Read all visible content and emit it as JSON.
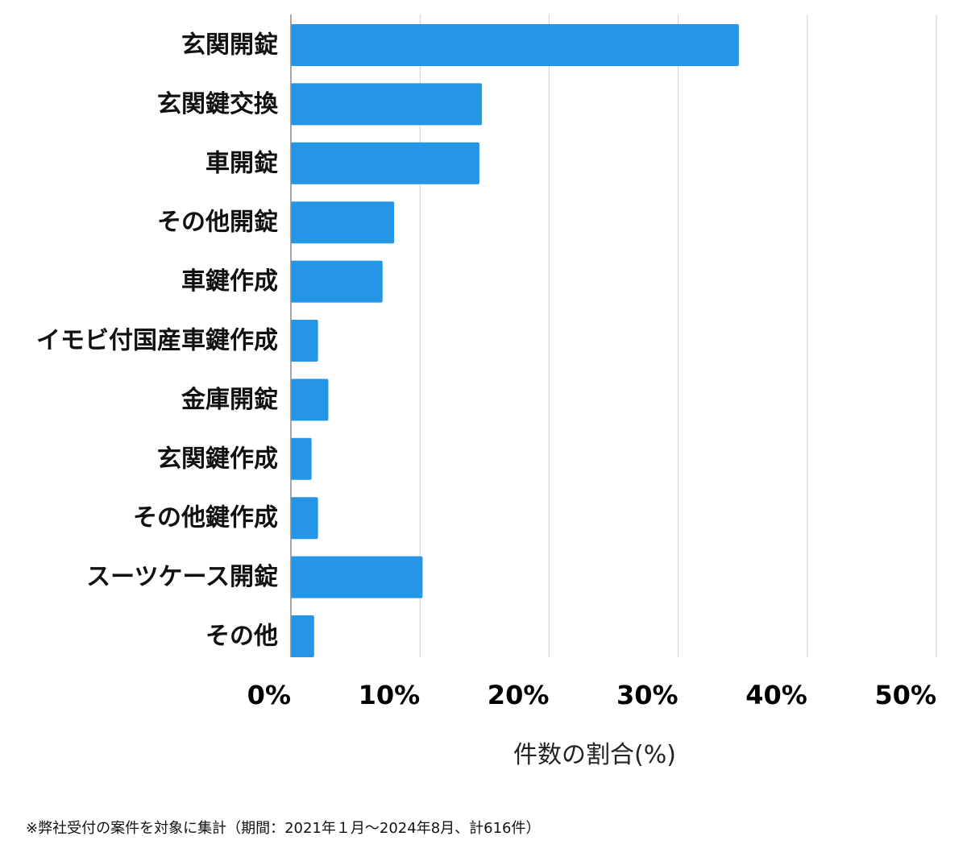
{
  "chart_data": {
    "type": "bar",
    "orientation": "horizontal",
    "categories": [
      "玄関開錠",
      "玄関鍵交換",
      "車開錠",
      "その他開錠",
      "車鍵作成",
      "イモビ付国産車鍵作成",
      "金庫開錠",
      "玄関鍵作成",
      "その他鍵作成",
      "スーツケース開錠",
      "その他"
    ],
    "values": [
      34.7,
      14.8,
      14.6,
      8.0,
      7.1,
      2.1,
      2.9,
      1.6,
      2.1,
      10.2,
      1.8
    ],
    "xlim": [
      0,
      50
    ],
    "xticks": [
      0,
      10,
      20,
      30,
      40,
      50
    ],
    "xtick_labels": [
      "0%",
      "10%",
      "20%",
      "30%",
      "40%",
      "50%"
    ],
    "xlabel": "件数の割合(%)",
    "ylabel": "",
    "grid": true,
    "bar_color": "#2595e6",
    "grid_color": "#cccccc"
  },
  "footnote": "※弊社受付の案件を対象に集計（期間：2021年１月〜2024年8月、計616件）"
}
